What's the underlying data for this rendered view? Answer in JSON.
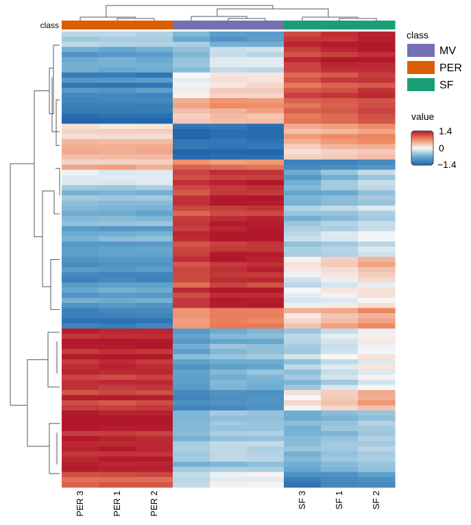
{
  "chart_data": {
    "type": "heatmap",
    "title": "",
    "annotation_title": "class",
    "legend": {
      "class_title": "class",
      "classes": [
        {
          "name": "MV",
          "color": "#7570b3"
        },
        {
          "name": "PER",
          "color": "#d95f02"
        },
        {
          "name": "SF",
          "color": "#1b9e77"
        }
      ],
      "value_title": "value",
      "value_ticks": [
        "1.4",
        "0",
        "−1.4"
      ],
      "value_range": [
        -1.4,
        1.4
      ]
    },
    "columns": [
      {
        "label": "PER 3",
        "class": "PER"
      },
      {
        "label": "PER 1",
        "class": "PER"
      },
      {
        "label": "PER 2",
        "class": "PER"
      },
      {
        "label": "",
        "class": "MV"
      },
      {
        "label": "",
        "class": "MV"
      },
      {
        "label": "",
        "class": "MV"
      },
      {
        "label": "SF 3",
        "class": "SF"
      },
      {
        "label": "SF 1",
        "class": "SF"
      },
      {
        "label": "SF 2",
        "class": "SF"
      }
    ],
    "row_blocks": [
      {
        "rows": 3,
        "values": [
          -0.3,
          -0.5,
          -0.7,
          1.2,
          1.3,
          1.4
        ]
      },
      {
        "rows": 5,
        "values": [
          -0.7,
          -0.5,
          -0.2,
          1.25,
          1.35,
          1.45
        ]
      },
      {
        "rows": 5,
        "values": [
          -1.0,
          0.0,
          0.2,
          1.0,
          1.1,
          1.2
        ]
      },
      {
        "rows": 5,
        "values": [
          -1.3,
          0.4,
          0.5,
          0.8,
          0.9,
          1.0
        ]
      },
      {
        "rows": 3,
        "values": [
          0.2,
          -1.3,
          -1.3,
          0.5,
          0.6,
          0.7
        ]
      },
      {
        "rows": 4,
        "values": [
          0.5,
          -1.3,
          -1.3,
          0.3,
          0.4,
          0.5
        ]
      },
      {
        "rows": 2,
        "values": [
          0.3,
          0.8,
          0.7,
          -1.2,
          -1.1,
          -1.0
        ]
      },
      {
        "rows": 3,
        "values": [
          -0.2,
          1.2,
          1.3,
          -0.8,
          -0.6,
          -0.4
        ]
      },
      {
        "rows": 8,
        "values": [
          -0.5,
          1.2,
          1.35,
          -0.5,
          -0.4,
          -0.3
        ]
      },
      {
        "rows": 6,
        "values": [
          -0.7,
          1.2,
          1.35,
          -0.3,
          -0.2,
          -0.1
        ]
      },
      {
        "rows": 5,
        "values": [
          -1.0,
          1.1,
          1.25,
          0.0,
          0.15,
          0.3
        ]
      },
      {
        "rows": 5,
        "values": [
          -0.8,
          1.1,
          1.3,
          -0.15,
          -0.05,
          0.05
        ]
      },
      {
        "rows": 4,
        "values": [
          -1.2,
          0.6,
          0.75,
          0.3,
          0.45,
          0.6
        ]
      },
      {
        "rows": 12,
        "values": [
          1.3,
          -0.8,
          -0.6,
          -0.4,
          -0.2,
          0.0
        ]
      },
      {
        "rows": 4,
        "values": [
          1.1,
          -1.1,
          -1.0,
          0.1,
          0.3,
          0.5
        ]
      },
      {
        "rows": 12,
        "values": [
          1.35,
          -0.5,
          -0.4,
          -0.6,
          -0.5,
          -0.4
        ]
      },
      {
        "rows": 3,
        "values": [
          1.1,
          -0.2,
          0.0,
          -1.0,
          -0.9,
          -0.8
        ]
      }
    ]
  }
}
